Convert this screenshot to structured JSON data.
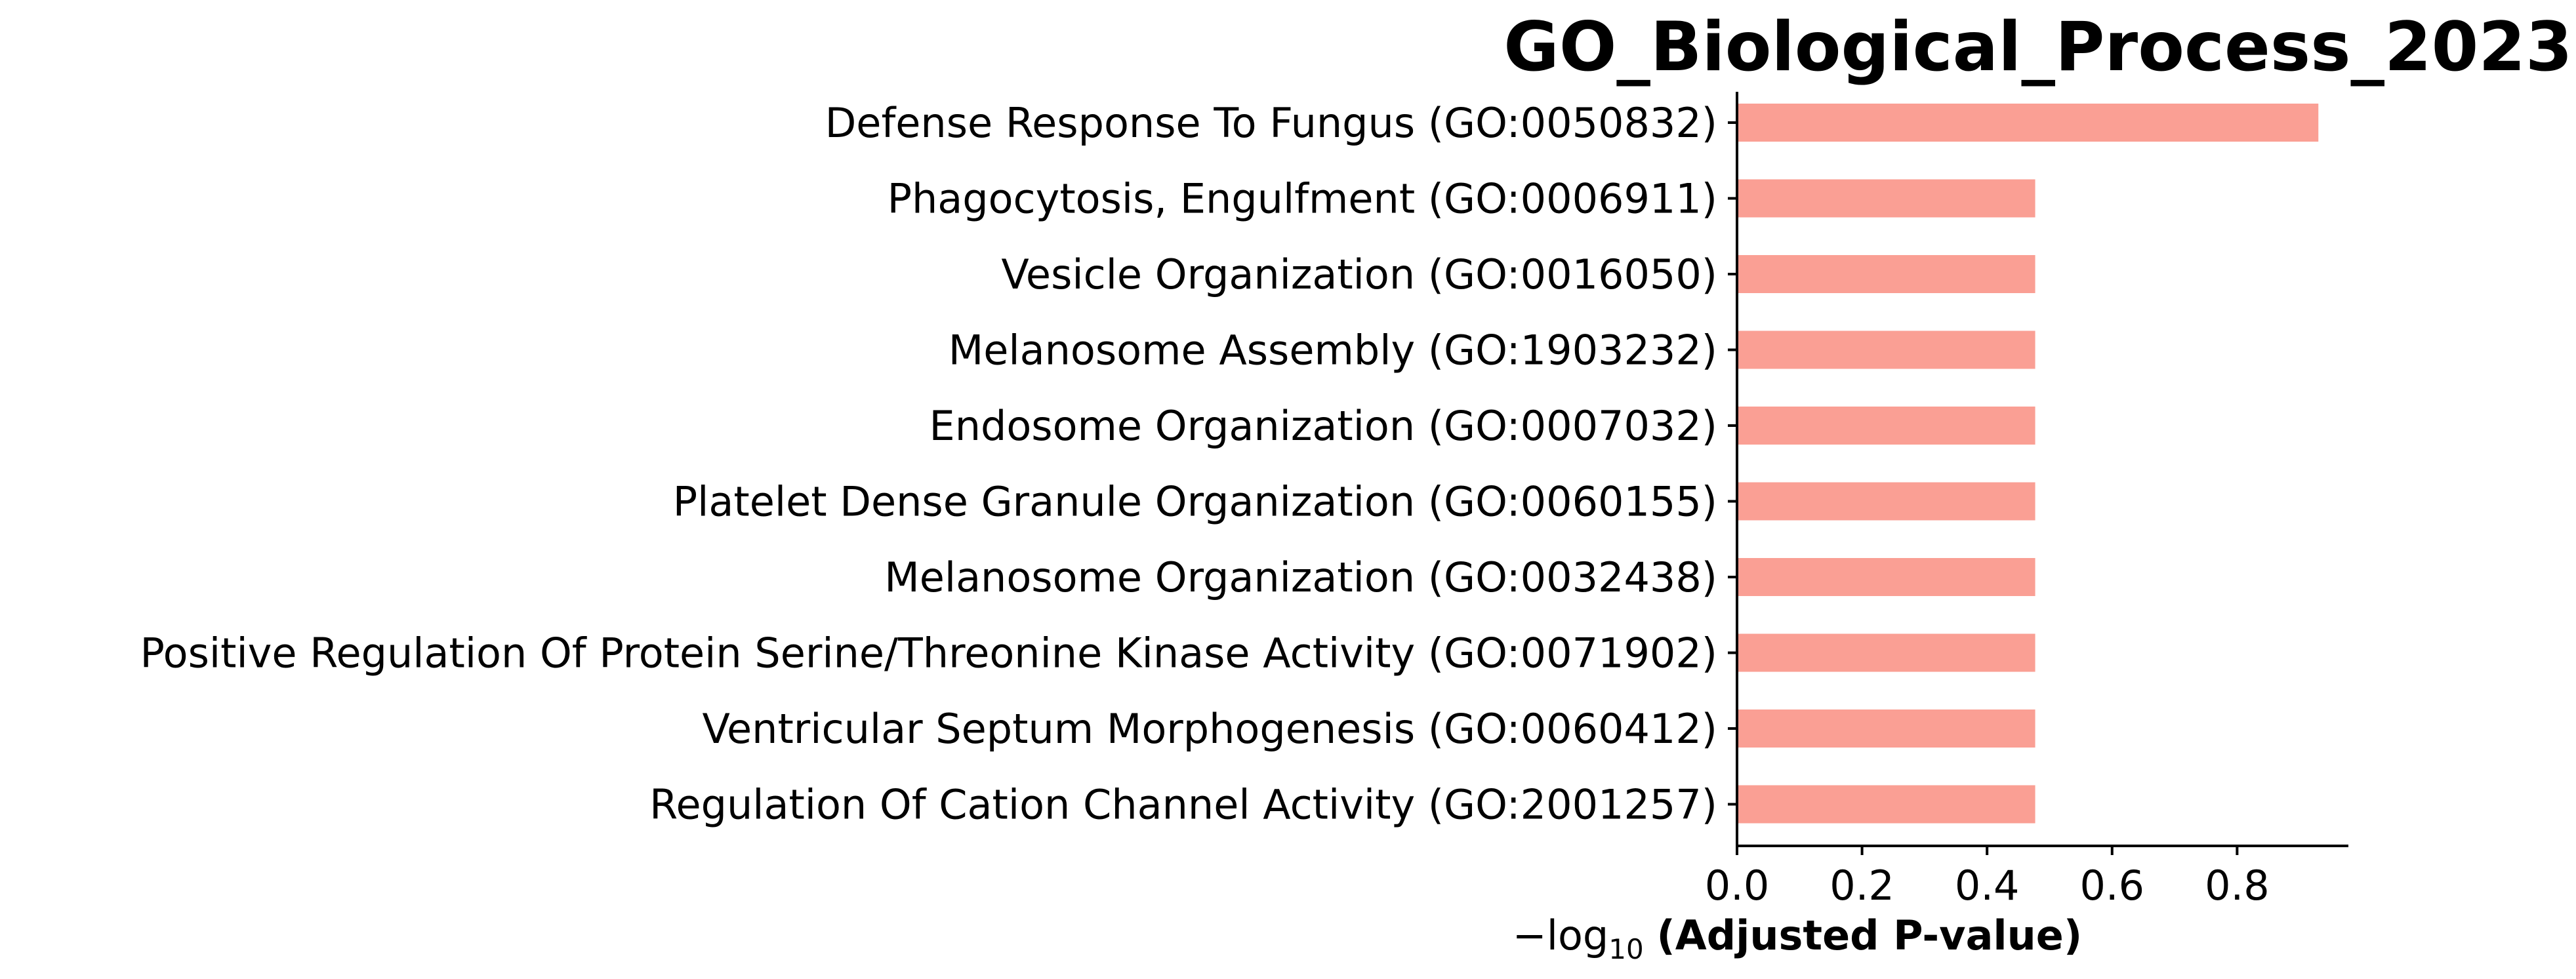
{
  "chart_data": {
    "type": "bar",
    "orientation": "horizontal",
    "title": "GO_Biological_Process_2023",
    "categories": [
      "Defense Response To Fungus (GO:0050832)",
      "Phagocytosis, Engulfment (GO:0006911)",
      "Vesicle Organization (GO:0016050)",
      "Melanosome Assembly (GO:1903232)",
      "Endosome Organization (GO:0007032)",
      "Platelet Dense Granule Organization (GO:0060155)",
      "Melanosome Organization (GO:0032438)",
      "Positive Regulation Of Protein Serine/Threonine Kinase Activity (GO:0071902)",
      "Ventricular Septum Morphogenesis (GO:0060412)",
      "Regulation Of Cation Channel Activity (GO:2001257)"
    ],
    "values": [
      0.93,
      0.477,
      0.477,
      0.477,
      0.477,
      0.477,
      0.477,
      0.477,
      0.477,
      0.477
    ],
    "bar_color": "#fa9f94",
    "xlabel_prefix": "−log",
    "xlabel_subscript": "10",
    "xlabel_suffix": "(Adjusted P-value)",
    "xlim": [
      0,
      0.978
    ],
    "xticks": [
      0.0,
      0.2,
      0.4,
      0.6,
      0.8
    ],
    "xtick_labels": [
      "0.0",
      "0.2",
      "0.4",
      "0.6",
      "0.8"
    ],
    "ylabel": "",
    "grid": false
  }
}
